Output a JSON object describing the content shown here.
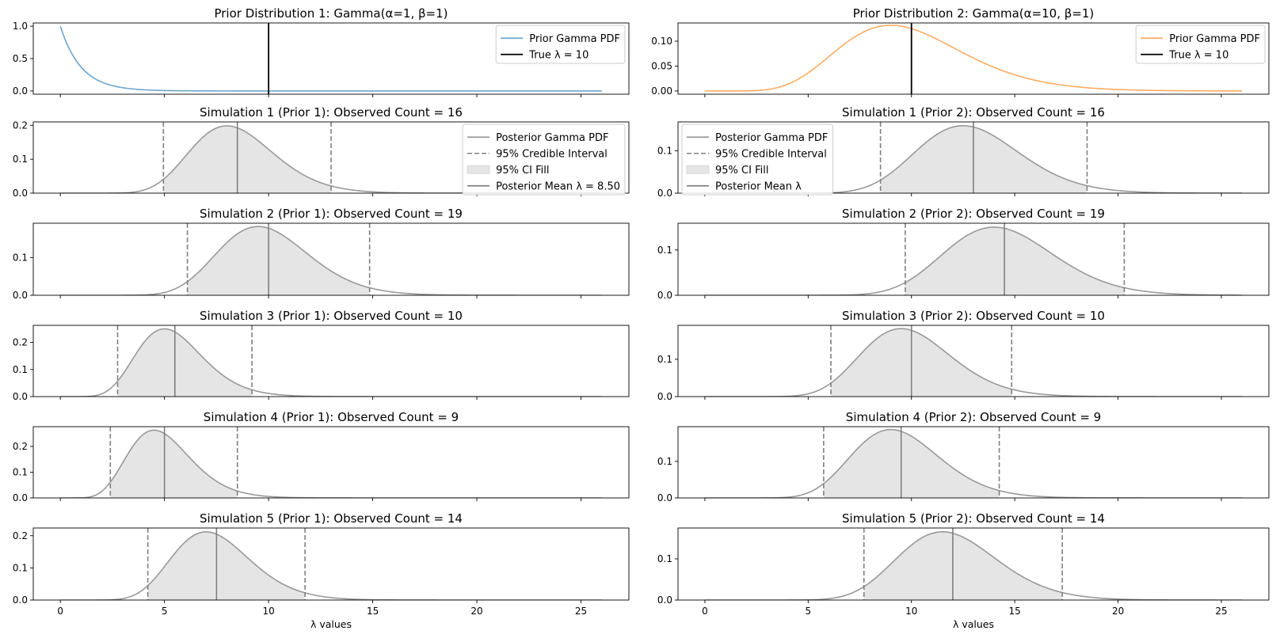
{
  "chart_data": [
    {
      "id": "prior-1",
      "type": "line",
      "kind": "prior",
      "title": "Prior Distribution 1: Gamma(α=1, β=1)",
      "prior": {
        "alpha": 1,
        "beta": 1
      },
      "true_lambda": 10,
      "xlim": [
        -1.3,
        27.3
      ],
      "ylim": [
        -0.05,
        1.05
      ],
      "yticks": [
        0.0,
        0.5,
        1.0
      ],
      "yticklabels": [
        "0.0",
        "0.5",
        "1.0"
      ],
      "xticks": [
        0,
        5,
        10,
        15,
        20,
        25
      ],
      "show_xticklabels": false,
      "xlabel": "",
      "series_color": "#1f77b4",
      "legend": {
        "position": "upper-right",
        "entries": [
          "Prior Gamma PDF",
          "True λ = 10"
        ]
      }
    },
    {
      "id": "prior-2",
      "type": "line",
      "kind": "prior",
      "title": "Prior Distribution 2: Gamma(α=10, β=1)",
      "prior": {
        "alpha": 10,
        "beta": 1
      },
      "true_lambda": 10,
      "xlim": [
        -1.3,
        27.3
      ],
      "ylim": [
        -0.0065,
        0.1365
      ],
      "yticks": [
        0.0,
        0.05,
        0.1
      ],
      "yticklabels": [
        "0.00",
        "0.05",
        "0.10"
      ],
      "xticks": [
        0,
        5,
        10,
        15,
        20,
        25
      ],
      "show_xticklabels": false,
      "xlabel": "",
      "series_color": "#ff7f0e",
      "legend": {
        "position": "upper-right",
        "entries": [
          "Prior Gamma PDF",
          "True λ = 10"
        ]
      }
    },
    {
      "id": "sim1-prior1",
      "type": "area",
      "kind": "posterior",
      "title": "Simulation 1 (Prior 1): Observed Count = 16",
      "posterior": {
        "alpha": 17,
        "beta": 2
      },
      "ci": [
        4.95,
        13.0
      ],
      "mean": 8.5,
      "xlim": [
        -1.3,
        27.3
      ],
      "ylim": [
        0,
        0.21
      ],
      "yticks": [
        0.0,
        0.1,
        0.2
      ],
      "yticklabels": [
        "0.0",
        "0.1",
        "0.2"
      ],
      "xticks": [
        0,
        5,
        10,
        15,
        20,
        25
      ],
      "show_xticklabels": false,
      "xlabel": "",
      "legend": {
        "position": "upper-right",
        "entries": [
          "Posterior Gamma PDF",
          "95% Credible Interval",
          "95% CI Fill",
          "Posterior Mean λ = 8.50"
        ]
      }
    },
    {
      "id": "sim1-prior2",
      "type": "area",
      "kind": "posterior",
      "title": "Simulation 1 (Prior 2): Observed Count = 16",
      "posterior": {
        "alpha": 26,
        "beta": 2
      },
      "ci": [
        8.5,
        18.5
      ],
      "mean": 13.0,
      "xlim": [
        -1.3,
        27.3
      ],
      "ylim": [
        0,
        0.168
      ],
      "yticks": [
        0.0,
        0.1
      ],
      "yticklabels": [
        "0.0",
        "0.1"
      ],
      "xticks": [
        0,
        5,
        10,
        15,
        20,
        25
      ],
      "show_xticklabels": false,
      "xlabel": "",
      "legend": {
        "position": "upper-left",
        "entries": [
          "Posterior Gamma PDF",
          "95% Credible Interval",
          "95% CI Fill",
          "Posterior Mean λ"
        ]
      }
    },
    {
      "id": "sim2-prior1",
      "type": "area",
      "kind": "posterior",
      "title": "Simulation 2 (Prior 1): Observed Count = 19",
      "posterior": {
        "alpha": 20,
        "beta": 2
      },
      "ci": [
        6.1,
        14.85
      ],
      "mean": 10.0,
      "xlim": [
        -1.3,
        27.3
      ],
      "ylim": [
        0,
        0.191
      ],
      "yticks": [
        0.0,
        0.1
      ],
      "yticklabels": [
        "0.0",
        "0.1"
      ],
      "xticks": [
        0,
        5,
        10,
        15,
        20,
        25
      ],
      "show_xticklabels": false,
      "xlabel": ""
    },
    {
      "id": "sim2-prior2",
      "type": "area",
      "kind": "posterior",
      "title": "Simulation 2 (Prior 2): Observed Count = 19",
      "posterior": {
        "alpha": 29,
        "beta": 2
      },
      "ci": [
        9.7,
        20.3
      ],
      "mean": 14.5,
      "xlim": [
        -1.3,
        27.3
      ],
      "ylim": [
        0,
        0.159
      ],
      "yticks": [
        0.0,
        0.1
      ],
      "yticklabels": [
        "0.0",
        "0.1"
      ],
      "xticks": [
        0,
        5,
        10,
        15,
        20,
        25
      ],
      "show_xticklabels": false,
      "xlabel": ""
    },
    {
      "id": "sim3-prior1",
      "type": "area",
      "kind": "posterior",
      "title": "Simulation 3 (Prior 1): Observed Count = 10",
      "posterior": {
        "alpha": 11,
        "beta": 2
      },
      "ci": [
        2.75,
        9.2
      ],
      "mean": 5.5,
      "xlim": [
        -1.3,
        27.3
      ],
      "ylim": [
        0,
        0.263
      ],
      "yticks": [
        0.0,
        0.1,
        0.2
      ],
      "yticklabels": [
        "0.0",
        "0.1",
        "0.2"
      ],
      "xticks": [
        0,
        5,
        10,
        15,
        20,
        25
      ],
      "show_xticklabels": false,
      "xlabel": ""
    },
    {
      "id": "sim3-prior2",
      "type": "area",
      "kind": "posterior",
      "title": "Simulation 3 (Prior 2): Observed Count = 10",
      "posterior": {
        "alpha": 20,
        "beta": 2
      },
      "ci": [
        6.1,
        14.85
      ],
      "mean": 10.0,
      "xlim": [
        -1.3,
        27.3
      ],
      "ylim": [
        0,
        0.191
      ],
      "yticks": [
        0.0,
        0.1
      ],
      "yticklabels": [
        "0.0",
        "0.1"
      ],
      "xticks": [
        0,
        5,
        10,
        15,
        20,
        25
      ],
      "show_xticklabels": false,
      "xlabel": ""
    },
    {
      "id": "sim4-prior1",
      "type": "area",
      "kind": "posterior",
      "title": "Simulation 4 (Prior 1): Observed Count = 9",
      "posterior": {
        "alpha": 10,
        "beta": 2
      },
      "ci": [
        2.4,
        8.5
      ],
      "mean": 5.0,
      "xlim": [
        -1.3,
        27.3
      ],
      "ylim": [
        0,
        0.277
      ],
      "yticks": [
        0.0,
        0.1,
        0.2
      ],
      "yticklabels": [
        "0.0",
        "0.1",
        "0.2"
      ],
      "xticks": [
        0,
        5,
        10,
        15,
        20,
        25
      ],
      "show_xticklabels": false,
      "xlabel": ""
    },
    {
      "id": "sim4-prior2",
      "type": "area",
      "kind": "posterior",
      "title": "Simulation 4 (Prior 2): Observed Count = 9",
      "posterior": {
        "alpha": 19,
        "beta": 2
      },
      "ci": [
        5.75,
        14.25
      ],
      "mean": 9.5,
      "xlim": [
        -1.3,
        27.3
      ],
      "ylim": [
        0,
        0.195
      ],
      "yticks": [
        0.0,
        0.1
      ],
      "yticklabels": [
        "0.0",
        "0.1"
      ],
      "xticks": [
        0,
        5,
        10,
        15,
        20,
        25
      ],
      "show_xticklabels": false,
      "xlabel": ""
    },
    {
      "id": "sim5-prior1",
      "type": "area",
      "kind": "posterior",
      "title": "Simulation 5 (Prior 1): Observed Count = 14",
      "posterior": {
        "alpha": 15,
        "beta": 2
      },
      "ci": [
        4.2,
        11.75
      ],
      "mean": 7.5,
      "xlim": [
        -1.3,
        27.3
      ],
      "ylim": [
        0,
        0.224
      ],
      "yticks": [
        0.0,
        0.1,
        0.2
      ],
      "yticklabels": [
        "0.0",
        "0.1",
        "0.2"
      ],
      "xticks": [
        0,
        5,
        10,
        15,
        20,
        25
      ],
      "xticklabels": [
        "0",
        "5",
        "10",
        "15",
        "20",
        "25"
      ],
      "show_xticklabels": true,
      "xlabel": "λ values"
    },
    {
      "id": "sim5-prior2",
      "type": "area",
      "kind": "posterior",
      "title": "Simulation 5 (Prior 2): Observed Count = 14",
      "posterior": {
        "alpha": 24,
        "beta": 2
      },
      "ci": [
        7.7,
        17.3
      ],
      "mean": 12.0,
      "xlim": [
        -1.3,
        27.3
      ],
      "ylim": [
        0,
        0.175
      ],
      "yticks": [
        0.0,
        0.1
      ],
      "yticklabels": [
        "0.0",
        "0.1"
      ],
      "xticks": [
        0,
        5,
        10,
        15,
        20,
        25
      ],
      "xticklabels": [
        "0",
        "5",
        "10",
        "15",
        "20",
        "25"
      ],
      "show_xticklabels": true,
      "xlabel": "λ values"
    }
  ],
  "colors": {
    "posterior_line": "#999999",
    "ci_fill": "#e5e5e5",
    "ci_line": "#808080",
    "mean_line": "#808080",
    "true_line": "#000000",
    "axis": "#000000"
  }
}
